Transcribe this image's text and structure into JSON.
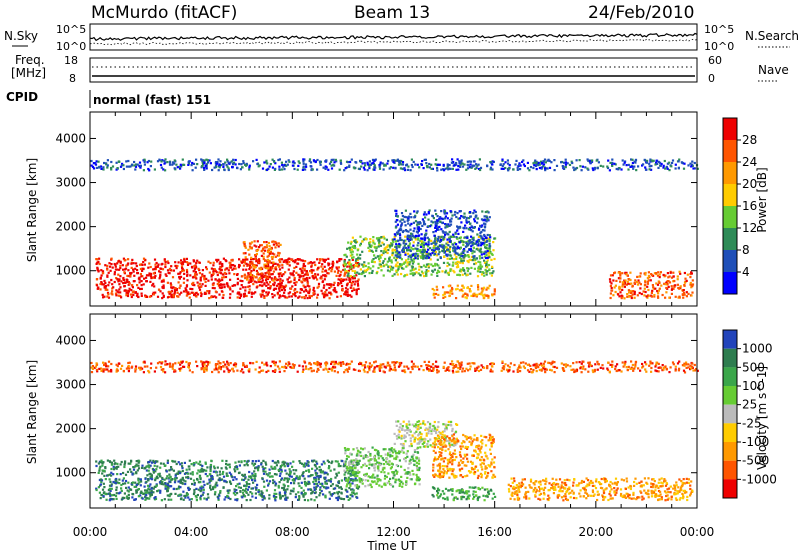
{
  "header": {
    "title": "McMurdo (fitACF)",
    "beam": "Beam 13",
    "date": "24/Feb/2010"
  },
  "noise_panel": {
    "left_label": "N.Sky",
    "right_label": "N.Search",
    "top_tick": "10^5",
    "bottom_tick": "10^0"
  },
  "freq_panel": {
    "left_label_line1": "Freq.",
    "left_label_line2": "[MHz]",
    "left_ticks": [
      "18",
      "8"
    ],
    "right_ticks": [
      "60",
      "0"
    ],
    "right_label": "Nave"
  },
  "cpid": {
    "label": "CPID",
    "value": "normal (fast) 151"
  },
  "axes": {
    "x_ticks": [
      "00:00",
      "04:00",
      "08:00",
      "12:00",
      "16:00",
      "20:00",
      "00:00"
    ],
    "x_label": "Time UT",
    "y_ticks": [
      "1000",
      "2000",
      "3000",
      "4000"
    ],
    "y_label": "Slant Range [km]",
    "ylim": [
      200,
      4600
    ],
    "xlim_hours": [
      0,
      24
    ]
  },
  "chart_data": [
    {
      "type": "heatmap",
      "panel": "power",
      "ylabel": "Slant Range [km]",
      "xlabel": "",
      "colorbar": {
        "label": "Power [dB]",
        "ticks": [
          "4",
          "8",
          "12",
          "16",
          "20",
          "24",
          "28"
        ],
        "colors": [
          "#0000ff",
          "#1f4fb8",
          "#2e8b57",
          "#66cc33",
          "#ffcc00",
          "#ff9900",
          "#ff5500",
          "#ee0000"
        ]
      },
      "regions": [
        {
          "t0": 0.2,
          "t1": 10.6,
          "r0": 400,
          "r1": 1300,
          "level": 7
        },
        {
          "t0": 6.0,
          "t1": 7.5,
          "r0": 800,
          "r1": 1700,
          "level": 6
        },
        {
          "t0": 10.0,
          "t1": 16.0,
          "r0": 900,
          "r1": 1800,
          "level": 3
        },
        {
          "t0": 12.0,
          "t1": 15.8,
          "r0": 1300,
          "r1": 2400,
          "level": 1
        },
        {
          "t0": 13.5,
          "t1": 16.0,
          "r0": 400,
          "r1": 700,
          "level": 5
        },
        {
          "t0": 20.5,
          "t1": 23.8,
          "r0": 400,
          "r1": 1000,
          "level": 6
        },
        {
          "t0": 0.0,
          "t1": 24.0,
          "r0": 3300,
          "r1": 3550,
          "level": 1
        }
      ]
    },
    {
      "type": "heatmap",
      "panel": "velocity",
      "ylabel": "Slant Range [km]",
      "xlabel": "Time UT",
      "colorbar": {
        "label": "Velocity [m s^-1]",
        "ticks": [
          "1000",
          "500",
          "100",
          "25",
          "-25",
          "-100",
          "-500",
          "-1000"
        ],
        "colors": [
          "#2244bb",
          "#2e7d4f",
          "#3aa64a",
          "#66cc33",
          "#bbbbbb",
          "#ffcc00",
          "#ff9900",
          "#ff5500",
          "#ee0000"
        ]
      },
      "regions": [
        {
          "t0": 0.2,
          "t1": 10.6,
          "r0": 400,
          "r1": 1300,
          "level": 1
        },
        {
          "t0": 10.0,
          "t1": 13.0,
          "r0": 700,
          "r1": 1600,
          "level": 3
        },
        {
          "t0": 12.0,
          "t1": 14.5,
          "r0": 1600,
          "r1": 2200,
          "level": 4
        },
        {
          "t0": 13.5,
          "t1": 16.0,
          "r0": 900,
          "r1": 1900,
          "level": 6
        },
        {
          "t0": 13.5,
          "t1": 16.0,
          "r0": 400,
          "r1": 700,
          "level": 2
        },
        {
          "t0": 16.5,
          "t1": 23.8,
          "r0": 400,
          "r1": 900,
          "level": 6
        },
        {
          "t0": 0.0,
          "t1": 24.0,
          "r0": 3300,
          "r1": 3550,
          "level": 7
        }
      ]
    }
  ]
}
